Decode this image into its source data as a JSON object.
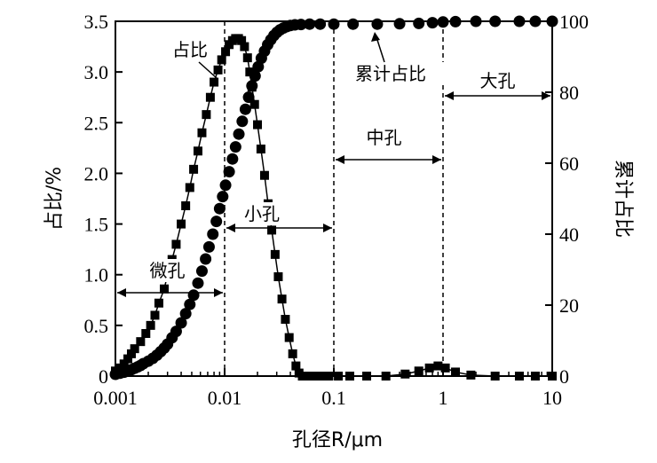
{
  "chart_data": {
    "type": "scatter",
    "x_scale": "log",
    "xlim": [
      0.001,
      10
    ],
    "ylim_left": [
      0,
      3.5
    ],
    "ylim_right": [
      0,
      100
    ],
    "xlabel": "孔径R/μm",
    "ylabel_left": "占比/%",
    "ylabel_right": "累计占比",
    "x_tick_labels": [
      "0.001",
      "0.01",
      "0.1",
      "1",
      "10"
    ],
    "x_ticks": [
      0.001,
      0.01,
      0.1,
      1,
      10
    ],
    "y_left_tick_labels": [
      "0",
      "0.5",
      "1.0",
      "1.5",
      "2.0",
      "2.5",
      "3.0",
      "3.5"
    ],
    "y_left_ticks": [
      0,
      0.5,
      1.0,
      1.5,
      2.0,
      2.5,
      3.0,
      3.5
    ],
    "y_right_tick_labels": [
      "0",
      "20",
      "40",
      "60",
      "80",
      "100"
    ],
    "y_right_ticks": [
      0,
      20,
      40,
      60,
      80,
      100
    ],
    "grid": false,
    "series": [
      {
        "name": "占比",
        "axis": "left",
        "marker": "square",
        "x": [
          0.001,
          0.0011,
          0.0012,
          0.0013,
          0.0014,
          0.0015,
          0.0017,
          0.0019,
          0.0021,
          0.0023,
          0.0025,
          0.0028,
          0.003,
          0.0033,
          0.0036,
          0.004,
          0.0044,
          0.0048,
          0.0052,
          0.0057,
          0.0062,
          0.0068,
          0.0074,
          0.008,
          0.0087,
          0.0094,
          0.0102,
          0.011,
          0.0118,
          0.0126,
          0.0134,
          0.0143,
          0.0152,
          0.0162,
          0.017,
          0.0178,
          0.0188,
          0.02,
          0.0215,
          0.0232,
          0.025,
          0.027,
          0.029,
          0.031,
          0.0335,
          0.036,
          0.039,
          0.042,
          0.045,
          0.048,
          0.0515,
          0.055,
          0.06,
          0.066,
          0.075,
          0.09,
          0.11,
          0.14,
          0.2,
          0.3,
          0.45,
          0.6,
          0.75,
          0.9,
          1.05,
          1.3,
          1.8,
          3,
          5,
          7,
          10
        ],
        "y": [
          0.05,
          0.08,
          0.12,
          0.17,
          0.22,
          0.27,
          0.34,
          0.42,
          0.5,
          0.6,
          0.72,
          0.86,
          1.0,
          1.15,
          1.3,
          1.5,
          1.68,
          1.86,
          2.04,
          2.22,
          2.4,
          2.58,
          2.75,
          2.9,
          3.02,
          3.12,
          3.2,
          3.27,
          3.31,
          3.33,
          3.33,
          3.31,
          3.25,
          3.14,
          3.0,
          2.85,
          2.68,
          2.48,
          2.24,
          1.98,
          1.7,
          1.44,
          1.2,
          0.98,
          0.76,
          0.56,
          0.38,
          0.22,
          0.1,
          0.03,
          0.0,
          0.0,
          0.0,
          0.0,
          0.0,
          0.0,
          0.0,
          0.0,
          0.0,
          0.0,
          0.02,
          0.05,
          0.08,
          0.1,
          0.08,
          0.04,
          0.01,
          0.0,
          0.0,
          0.0,
          0.0
        ]
      },
      {
        "name": "累计占比",
        "axis": "right",
        "marker": "circle",
        "x": [
          0.001,
          0.0011,
          0.0012,
          0.0013,
          0.0014,
          0.0015,
          0.0016,
          0.0017,
          0.0018,
          0.002,
          0.0022,
          0.0024,
          0.0026,
          0.0028,
          0.003,
          0.0033,
          0.0036,
          0.004,
          0.0044,
          0.0048,
          0.0052,
          0.0057,
          0.0062,
          0.0067,
          0.0072,
          0.0078,
          0.0084,
          0.009,
          0.0096,
          0.0102,
          0.011,
          0.0118,
          0.0126,
          0.0135,
          0.0145,
          0.0155,
          0.0166,
          0.0178,
          0.019,
          0.0203,
          0.0217,
          0.0232,
          0.0248,
          0.0265,
          0.0283,
          0.0302,
          0.0322,
          0.0345,
          0.037,
          0.04,
          0.044,
          0.05,
          0.06,
          0.075,
          0.1,
          0.15,
          0.25,
          0.4,
          0.6,
          0.8,
          1.0,
          1.3,
          2,
          3,
          5,
          7,
          10
        ],
        "y": [
          0.5,
          0.8,
          1.1,
          1.4,
          1.8,
          2.2,
          2.6,
          3.0,
          3.5,
          4.2,
          5.0,
          5.9,
          6.9,
          7.9,
          9.0,
          10.8,
          12.6,
          15.0,
          17.6,
          20.2,
          22.8,
          26.2,
          29.6,
          33.0,
          36.4,
          40.0,
          43.6,
          47.2,
          50.6,
          53.8,
          57.6,
          61.2,
          64.6,
          68.2,
          71.8,
          75.2,
          78.6,
          81.8,
          84.6,
          87.2,
          89.6,
          91.6,
          93.4,
          94.8,
          96.0,
          96.9,
          97.6,
          98.1,
          98.5,
          98.8,
          99.0,
          99.1,
          99.2,
          99.2,
          99.2,
          99.2,
          99.2,
          99.3,
          99.4,
          99.6,
          99.8,
          99.9,
          100,
          100,
          100,
          100,
          100
        ]
      }
    ],
    "dashed_lines_x": [
      0.01,
      0.1,
      1
    ],
    "annotations": [
      {
        "text": "占比",
        "target_series": "占比"
      },
      {
        "text": "累计占比",
        "target_series": "累计占比"
      },
      {
        "text": "微孔",
        "span": [
          0.001,
          0.01
        ]
      },
      {
        "text": "小孔",
        "span": [
          0.01,
          0.1
        ]
      },
      {
        "text": "中孔",
        "span": [
          0.1,
          1
        ]
      },
      {
        "text": "大孔",
        "span": [
          1,
          10
        ]
      }
    ]
  }
}
